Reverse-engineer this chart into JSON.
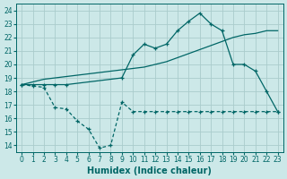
{
  "xlabel": "Humidex (Indice chaleur)",
  "bg_color": "#cce8e8",
  "grid_color": "#aacccc",
  "line_color": "#006666",
  "xlim": [
    -0.5,
    23.5
  ],
  "ylim": [
    13.5,
    24.5
  ],
  "yticks": [
    14,
    15,
    16,
    17,
    18,
    19,
    20,
    21,
    22,
    23,
    24
  ],
  "xticks": [
    0,
    1,
    2,
    3,
    4,
    5,
    6,
    7,
    8,
    9,
    10,
    11,
    12,
    13,
    14,
    15,
    16,
    17,
    18,
    19,
    20,
    21,
    22,
    23
  ],
  "line1_x": [
    0,
    1,
    2,
    3,
    4,
    5,
    6,
    7,
    8,
    9,
    10,
    11,
    12,
    13,
    14,
    15,
    16,
    17,
    18,
    19,
    20,
    21,
    22,
    23
  ],
  "line1_y": [
    18.5,
    18.7,
    18.9,
    19.0,
    19.1,
    19.2,
    19.3,
    19.4,
    19.5,
    19.6,
    19.7,
    19.8,
    20.0,
    20.2,
    20.5,
    20.8,
    21.1,
    21.4,
    21.7,
    22.0,
    22.2,
    22.3,
    22.5,
    22.5
  ],
  "line2_x": [
    0,
    1,
    2,
    3,
    4,
    9,
    10,
    11,
    12,
    13,
    14,
    15,
    16,
    17,
    18,
    19,
    20,
    21,
    22,
    23
  ],
  "line2_y": [
    18.5,
    18.5,
    18.5,
    18.5,
    18.5,
    19.0,
    20.7,
    21.5,
    21.2,
    21.5,
    22.5,
    23.2,
    23.8,
    23.0,
    22.5,
    20.0,
    20.0,
    19.5,
    18.0,
    16.5
  ],
  "line3_x": [
    0,
    1,
    2,
    3,
    4,
    5,
    6,
    7,
    8,
    9,
    10,
    11,
    12,
    13,
    14,
    15,
    16,
    17,
    18,
    19,
    20,
    21,
    22,
    23
  ],
  "line3_y": [
    18.5,
    18.4,
    18.3,
    16.8,
    16.7,
    15.8,
    15.2,
    13.8,
    14.0,
    17.2,
    16.5,
    16.5,
    16.5,
    16.5,
    16.5,
    16.5,
    16.5,
    16.5,
    16.5,
    16.5,
    16.5,
    16.5,
    16.5,
    16.5
  ],
  "font_size_label": 7,
  "font_size_tick": 5.5
}
